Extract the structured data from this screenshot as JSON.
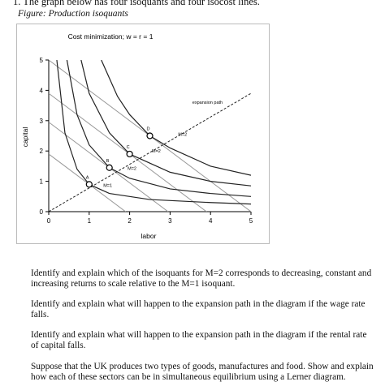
{
  "header": {
    "question": "1.  The graph below has four isoquants and four isocost lines.",
    "caption": "Figure: Production isoquants"
  },
  "figure": {
    "chart": {
      "type": "line",
      "title": "Cost minimization; w = r = 1",
      "xlabel": "labor",
      "ylabel": "capital",
      "xlim": [
        0,
        5
      ],
      "ylim": [
        0,
        5
      ],
      "xticks": [
        0,
        1,
        2,
        3,
        4,
        5
      ],
      "yticks": [
        0,
        1,
        2,
        3,
        4,
        5
      ],
      "isoquants": [
        {
          "label": "M=1",
          "label_at": [
            1.35,
            0.82
          ],
          "points": [
            [
              0.2,
              5
            ],
            [
              0.4,
              2.6
            ],
            [
              0.7,
              1.4
            ],
            [
              1,
              0.9
            ],
            [
              1.5,
              0.6
            ],
            [
              2.5,
              0.4
            ],
            [
              4,
              0.3
            ],
            [
              5,
              0.25
            ]
          ]
        },
        {
          "label": "M=2",
          "label_at": [
            1.95,
            1.38
          ],
          "points": [
            [
              0.45,
              5
            ],
            [
              0.7,
              3.2
            ],
            [
              1,
              2.2
            ],
            [
              1.5,
              1.45
            ],
            [
              2,
              1.1
            ],
            [
              3,
              0.75
            ],
            [
              4,
              0.6
            ],
            [
              5,
              0.5
            ]
          ]
        },
        {
          "label": "M=2",
          "label_at": [
            2.55,
            1.95
          ],
          "points": [
            [
              0.8,
              5
            ],
            [
              1,
              3.9
            ],
            [
              1.5,
              2.6
            ],
            [
              2,
              1.9
            ],
            [
              3,
              1.3
            ],
            [
              4,
              1.0
            ],
            [
              5,
              0.85
            ]
          ]
        },
        {
          "label": "M=2",
          "label_at": [
            3.2,
            2.5
          ],
          "points": [
            [
              1.3,
              5
            ],
            [
              1.7,
              3.8
            ],
            [
              2,
              3.2
            ],
            [
              2.5,
              2.5
            ],
            [
              3,
              2.1
            ],
            [
              4,
              1.5
            ],
            [
              5,
              1.2
            ]
          ]
        }
      ],
      "isocosts": [
        {
          "points": [
            [
              0,
              1.9
            ],
            [
              1.9,
              0
            ]
          ]
        },
        {
          "points": [
            [
              0,
              2.95
            ],
            [
              2.95,
              0
            ]
          ]
        },
        {
          "points": [
            [
              0,
              3.9
            ],
            [
              3.9,
              0
            ]
          ]
        },
        {
          "points": [
            [
              0,
              5
            ],
            [
              5,
              0
            ]
          ]
        }
      ],
      "expansion_path": {
        "label": "expansion path",
        "label_at": [
          3.55,
          3.55
        ],
        "points": [
          [
            0,
            0
          ],
          [
            5,
            3.9
          ]
        ]
      },
      "optima": [
        {
          "label": "A",
          "x": 1,
          "y": 0.9
        },
        {
          "label": "B",
          "x": 1.5,
          "y": 1.45
        },
        {
          "label": "C",
          "x": 2,
          "y": 1.9
        },
        {
          "label": "D",
          "x": 2.5,
          "y": 2.5
        }
      ]
    }
  },
  "questions": [
    "Identify and explain which of the isoquants for M=2 corresponds to decreasing, constant and increasing returns to scale relative to the M=1 isoquant.",
    "Identify and explain what will happen to the expansion path in the diagram if the wage rate falls.",
    "Identify and explain what will happen to the expansion path in the diagram if the rental rate of capital falls.",
    "Suppose that the UK produces two types of goods, manufactures and food. Show and explain how each of these sectors can be in simultaneous equilibrium using a Lerner diagram."
  ]
}
